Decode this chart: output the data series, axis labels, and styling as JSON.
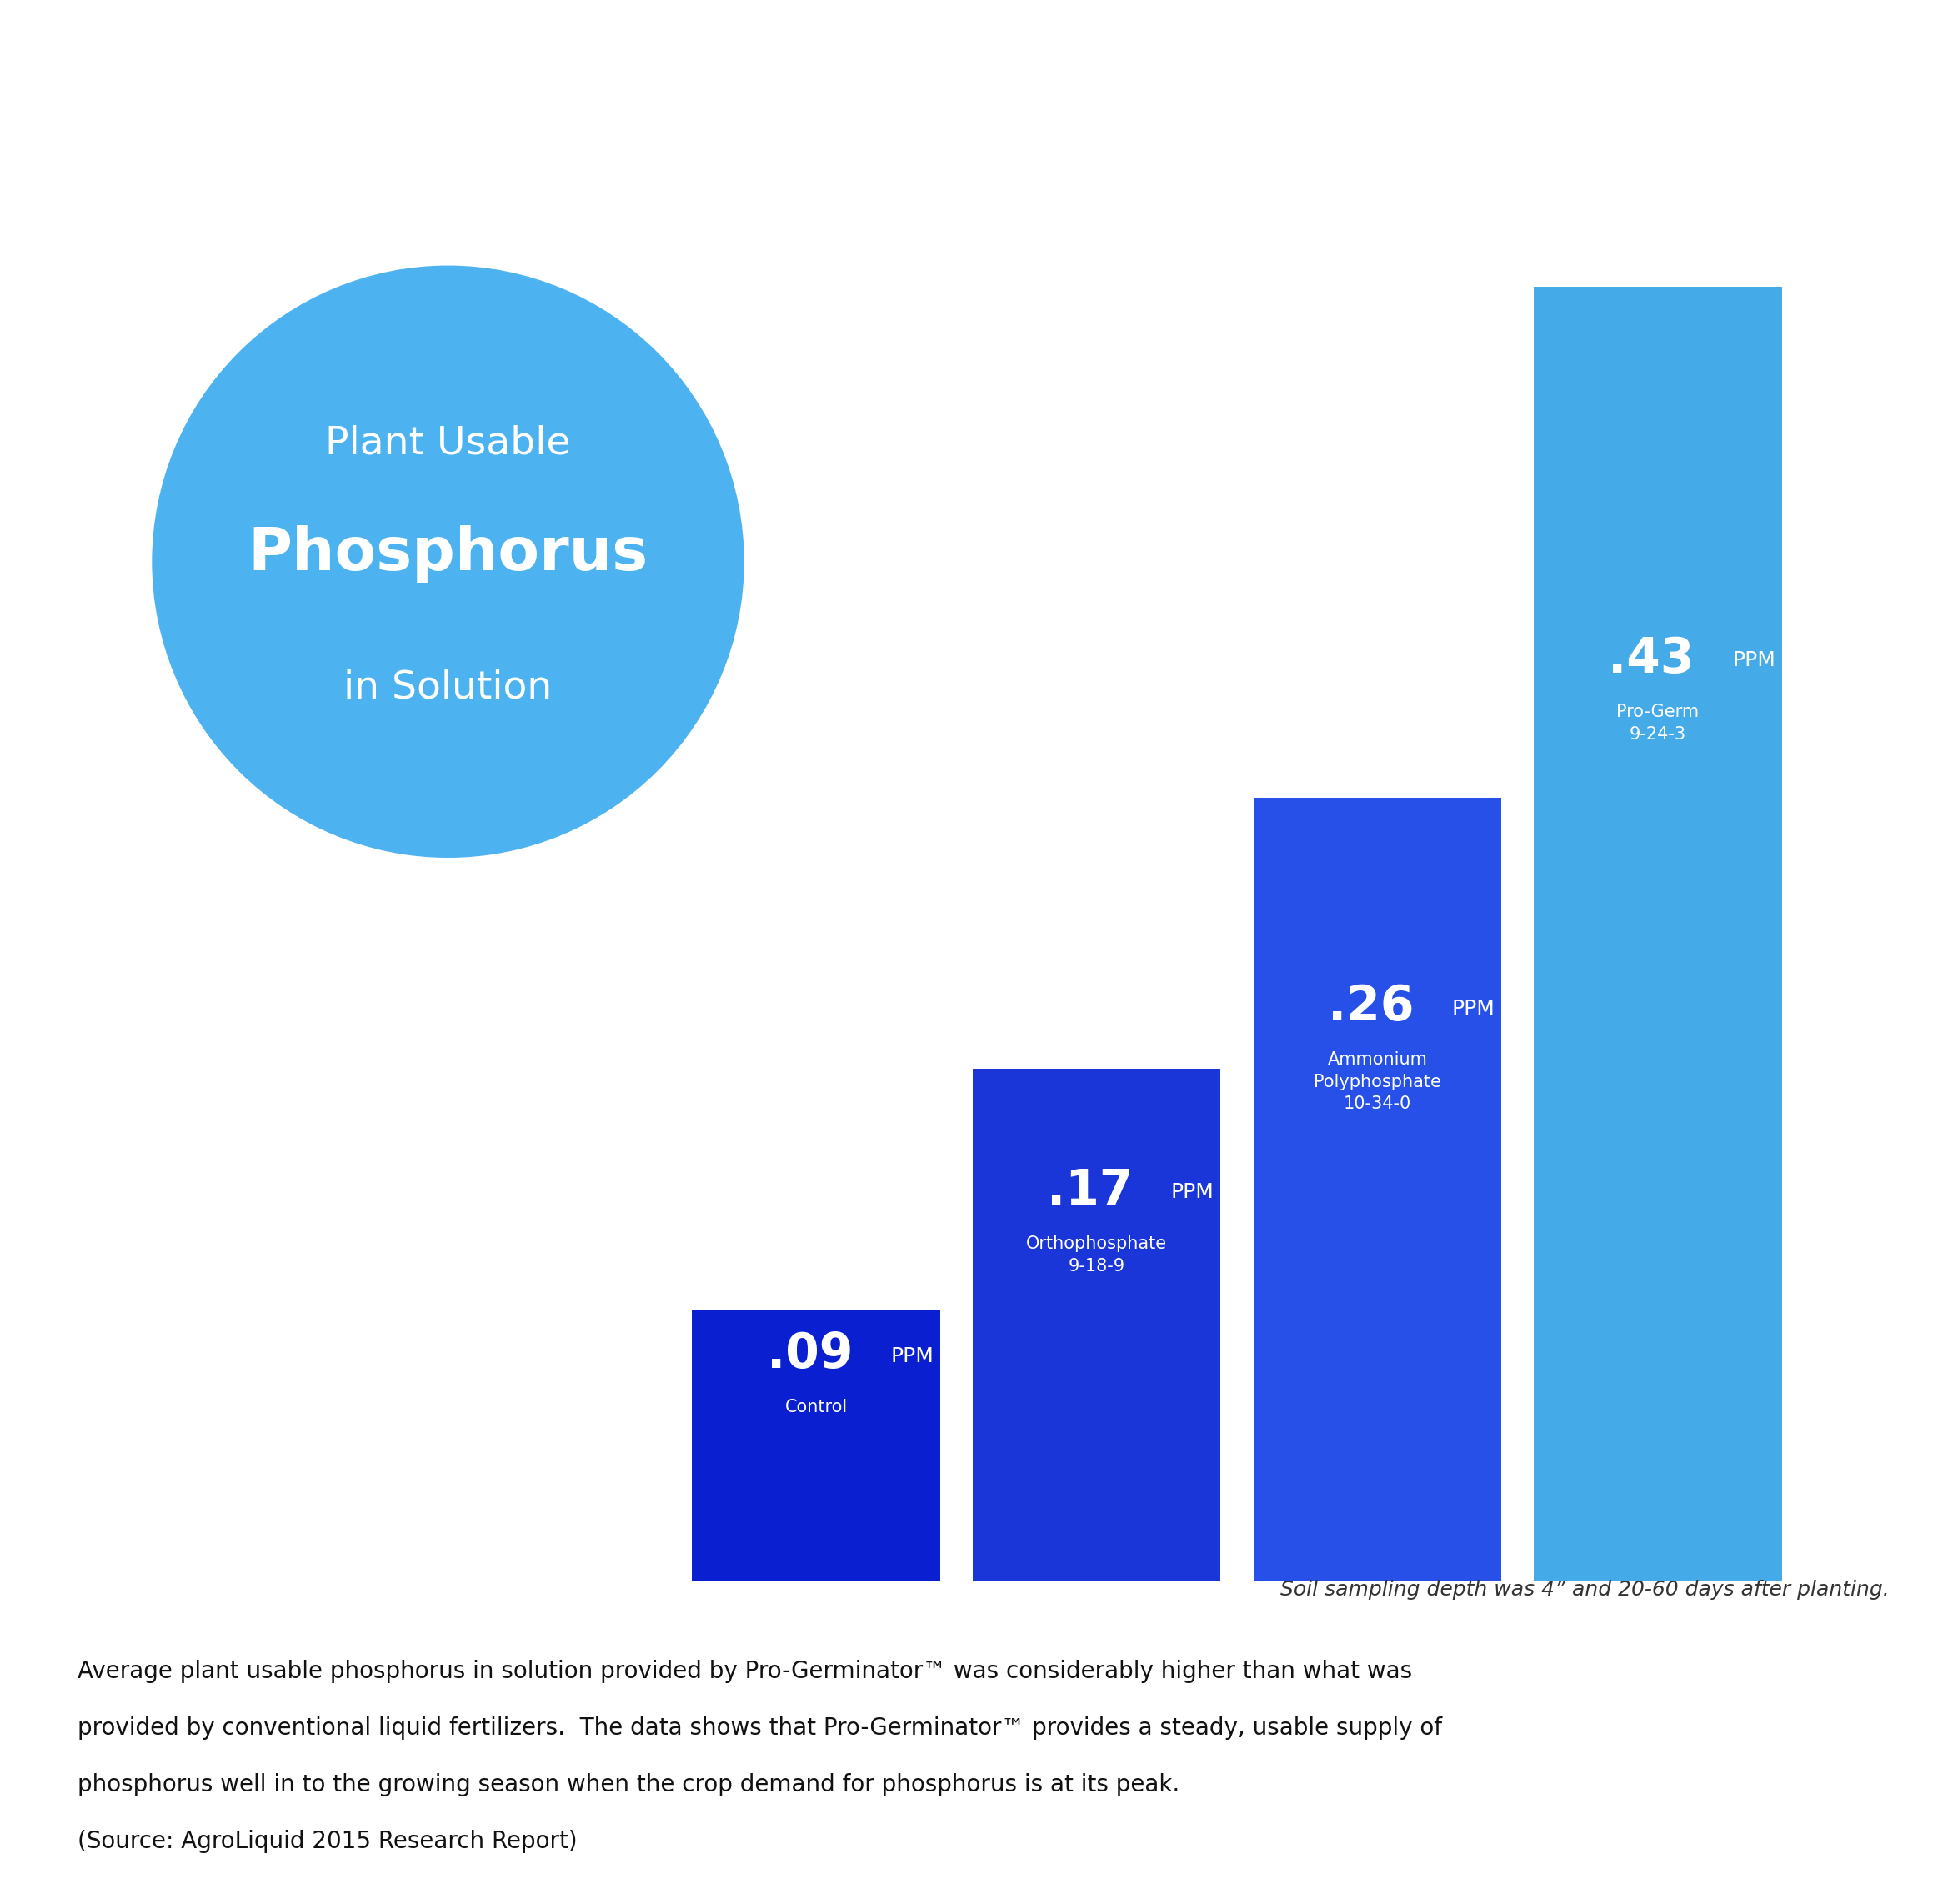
{
  "background_color": "#ffffff",
  "bar_values": [
    0.09,
    0.17,
    0.26,
    0.43
  ],
  "bar_colors": [
    "#0a1fd0",
    "#1a35d8",
    "#2650e8",
    "#44aae8"
  ],
  "bar_labels_big": [
    ".09",
    ".17",
    ".26",
    ".43"
  ],
  "bar_sublabels_line1": [
    "Control",
    "Orthophosphate",
    "Ammonium",
    "Pro-Germ"
  ],
  "bar_sublabels_line2": [
    "",
    "9-18-9",
    "Polyphosphate",
    "9-24-3"
  ],
  "bar_sublabels_line3": [
    "",
    "",
    "10-34-0",
    ""
  ],
  "circle_color": "#4db3f0",
  "circle_text_line1": "Plant Usable",
  "circle_text_line2": "Phosphorus",
  "circle_text_line3": "in Solution",
  "footnote": "Soil sampling depth was 4” and 20-60 days after planting.",
  "body_text_line1": "Average plant usable phosphorus in solution provided by Pro-Germinator™ was considerably higher than what was",
  "body_text_line2": "provided by conventional liquid fertilizers.  The data shows that Pro-Germinator™ provides a steady, usable supply of",
  "body_text_line3": "phosphorus well in to the growing season when the crop demand for phosphorus is at its peak.",
  "body_text_line4": "(Source: AgroLiquid 2015 Research Report)"
}
